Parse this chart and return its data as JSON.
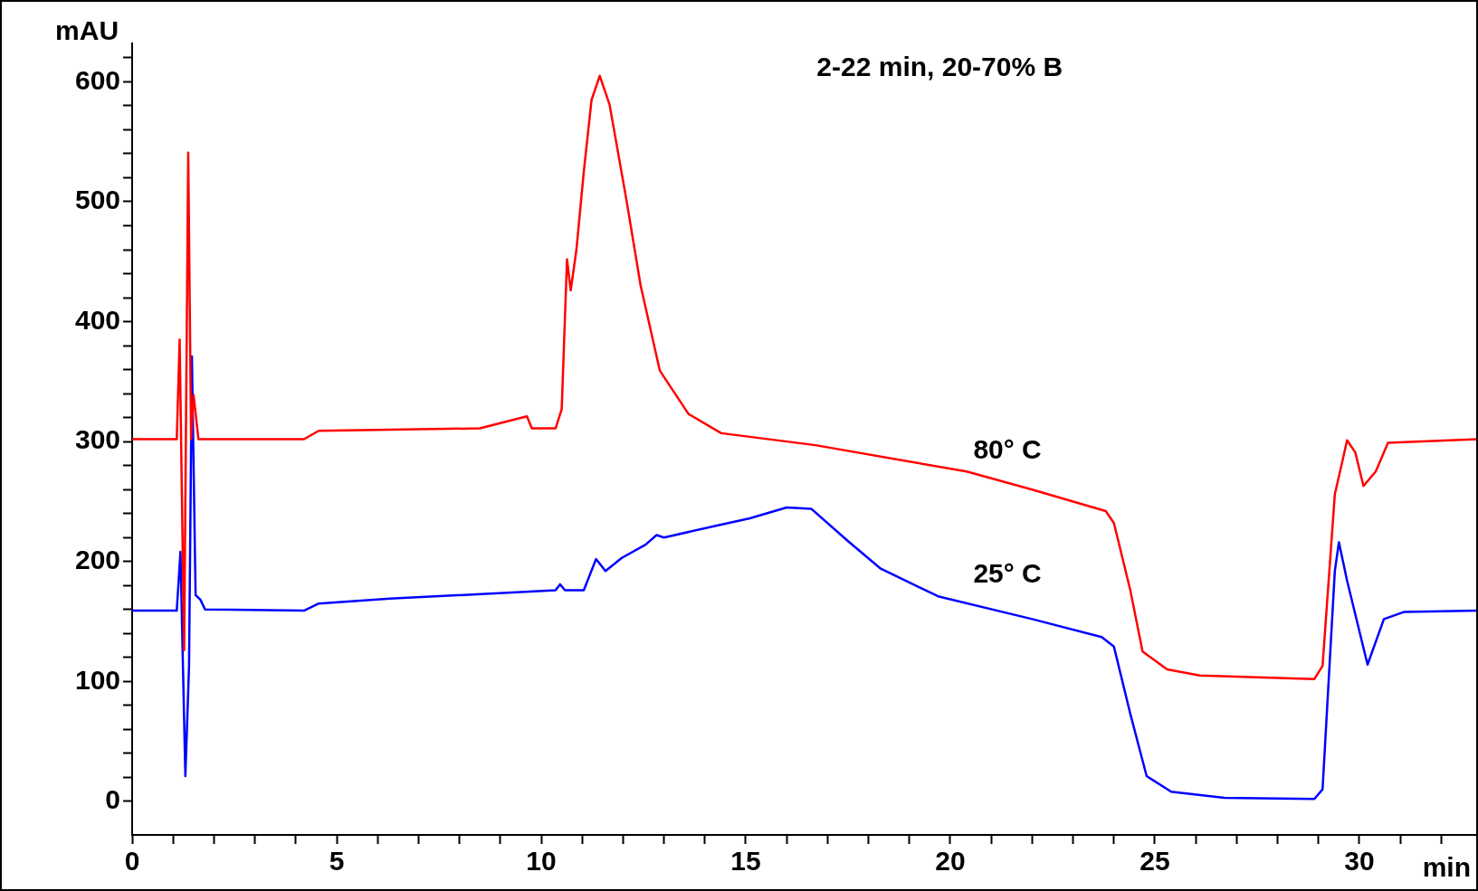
{
  "chart_data": {
    "type": "line",
    "title": "2-22 min, 20-70% B",
    "xlabel": "min",
    "ylabel": "mAU",
    "xlim": [
      0,
      32.9
    ],
    "xticks": [
      0,
      5,
      10,
      15,
      20,
      25,
      30,
      {
        "value": 1,
        "label": null
      },
      {
        "value": 2,
        "label": null
      },
      {
        "value": 3,
        "label": null
      },
      {
        "value": 4,
        "label": null
      },
      {
        "value": 6,
        "label": null
      },
      {
        "value": 7,
        "label": null
      },
      {
        "value": 8,
        "label": null
      },
      {
        "value": 9,
        "label": null
      },
      {
        "value": 11,
        "label": null
      },
      {
        "value": 12,
        "label": null
      },
      {
        "value": 13,
        "label": null
      },
      {
        "value": 14,
        "label": null
      },
      {
        "value": 16,
        "label": null
      },
      {
        "value": 17,
        "label": null
      },
      {
        "value": 18,
        "label": null
      },
      {
        "value": 19,
        "label": null
      },
      {
        "value": 21,
        "label": null
      },
      {
        "value": 22,
        "label": null
      },
      {
        "value": 23,
        "label": null
      },
      {
        "value": 24,
        "label": null
      },
      {
        "value": 26,
        "label": null
      },
      {
        "value": 27,
        "label": null
      },
      {
        "value": 28,
        "label": null
      },
      {
        "value": 29,
        "label": null
      },
      {
        "value": 31,
        "label": null
      },
      {
        "value": 32,
        "label": null
      }
    ],
    "ylim": [
      -28,
      632
    ],
    "yticks": [
      0,
      100,
      200,
      300,
      400,
      500,
      600,
      {
        "value": 20,
        "label": null
      },
      {
        "value": 40,
        "label": null
      },
      {
        "value": 60,
        "label": null
      },
      {
        "value": 80,
        "label": null
      },
      {
        "value": 120,
        "label": null
      },
      {
        "value": 140,
        "label": null
      },
      {
        "value": 160,
        "label": null
      },
      {
        "value": 180,
        "label": null
      },
      {
        "value": 220,
        "label": null
      },
      {
        "value": 240,
        "label": null
      },
      {
        "value": 260,
        "label": null
      },
      {
        "value": 280,
        "label": null
      },
      {
        "value": 320,
        "label": null
      },
      {
        "value": 340,
        "label": null
      },
      {
        "value": 360,
        "label": null
      },
      {
        "value": 380,
        "label": null
      },
      {
        "value": 420,
        "label": null
      },
      {
        "value": 440,
        "label": null
      },
      {
        "value": 460,
        "label": null
      },
      {
        "value": 480,
        "label": null
      },
      {
        "value": 520,
        "label": null
      },
      {
        "value": 540,
        "label": null
      },
      {
        "value": 560,
        "label": null
      },
      {
        "value": 580,
        "label": null
      },
      {
        "value": 620,
        "label": null
      }
    ],
    "grid": false,
    "marker": "none",
    "line_style": "solid",
    "series": [
      {
        "name": "80° C",
        "color": "#ff0000",
        "x": [
          0,
          1.09,
          1.16,
          1.27,
          1.37,
          1.44,
          1.5,
          1.62,
          4.2,
          4.56,
          8.5,
          9.65,
          9.77,
          10.35,
          10.5,
          10.63,
          10.72,
          10.86,
          11.04,
          11.23,
          11.43,
          11.67,
          12.08,
          12.43,
          12.9,
          13.6,
          14.4,
          16.7,
          20.4,
          22,
          23.8,
          24,
          24.4,
          24.7,
          25.3,
          26.1,
          28.9,
          29.1,
          29.4,
          29.7,
          29.9,
          30.1,
          30.4,
          30.7,
          32.9
        ],
        "values": [
          302,
          302,
          385,
          126,
          541,
          302,
          339,
          302,
          302,
          309,
          311,
          321,
          311,
          311,
          327,
          452,
          426,
          460,
          525,
          585,
          605,
          581,
          502,
          430,
          359,
          323,
          307,
          297,
          275,
          260,
          242,
          232,
          176,
          125,
          110,
          105,
          102,
          113,
          256,
          301,
          291,
          263,
          275,
          299,
          302
        ]
      },
      {
        "name": "25° C",
        "color": "#0000ff",
        "x": [
          0,
          1.09,
          1.18,
          1.3,
          1.39,
          1.46,
          1.55,
          1.67,
          1.78,
          4.2,
          4.56,
          6.3,
          10.35,
          10.46,
          10.58,
          11.04,
          11.34,
          11.57,
          11.97,
          12.55,
          12.82,
          13,
          14.17,
          15.1,
          16,
          16.6,
          17.5,
          18.3,
          19.7,
          22,
          23.7,
          24,
          24.4,
          24.8,
          25.4,
          26.7,
          28.9,
          29.1,
          29.4,
          29.5,
          29.7,
          30.2,
          30.6,
          31.1,
          32.9
        ],
        "values": [
          159,
          159,
          208,
          21,
          113,
          371,
          172,
          168,
          160,
          159,
          165,
          169,
          176,
          181,
          176,
          176,
          202,
          192,
          203,
          214,
          222,
          220,
          229,
          236,
          245,
          244,
          217,
          194,
          171,
          152,
          137,
          129,
          73,
          21,
          8,
          3,
          2,
          10,
          192,
          216,
          184,
          114,
          152,
          158,
          159
        ]
      }
    ]
  }
}
